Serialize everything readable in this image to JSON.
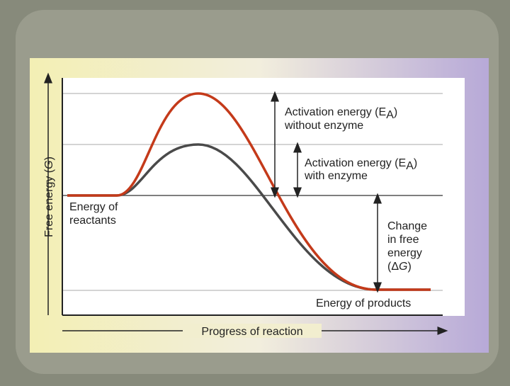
{
  "diagram": {
    "y_axis_label": {
      "text": "Free energy (",
      "italic": "G",
      "end": ")"
    },
    "x_axis_label": "Progress of reaction",
    "without_enzyme": {
      "line1": {
        "text": "Activation energy (E",
        "sub": "A",
        "end": ")"
      },
      "line2": "without enzyme"
    },
    "with_enzyme": {
      "line1": {
        "text": "Activation energy (E",
        "sub": "A",
        "end": ")"
      },
      "line2": "with enzyme"
    },
    "reactants": [
      "Energy of",
      "reactants"
    ],
    "change": [
      "Change",
      "in free",
      "energy",
      {
        "text": "(Δ",
        "italic": "G",
        "end": ")"
      }
    ],
    "products": "Energy of products"
  }
}
